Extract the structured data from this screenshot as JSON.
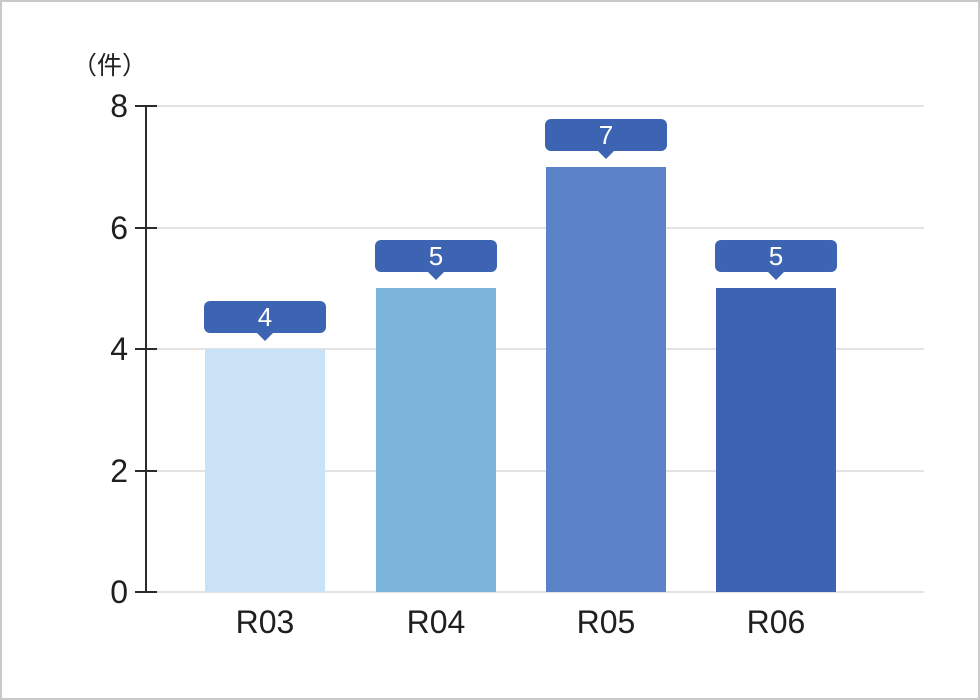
{
  "chart_data": {
    "type": "bar",
    "title": "",
    "unit_label": "（件）",
    "categories": [
      "R03",
      "R04",
      "R05",
      "R06"
    ],
    "values": [
      4,
      5,
      7,
      5
    ],
    "data_labels": [
      "4",
      "5",
      "7",
      "5"
    ],
    "bar_colors": [
      "#c9e2f5",
      "#7cb5db",
      "#5b82c9",
      "#3c64b2"
    ],
    "y_ticks": [
      "0",
      "2",
      "4",
      "6",
      "8"
    ],
    "y_tick_values": [
      0,
      2,
      4,
      6,
      8
    ],
    "ylim": [
      0,
      8
    ],
    "xlabel": "",
    "ylabel": "（件）",
    "grid": true,
    "legend": "none",
    "callout_color": "#3c64b2",
    "callout_text_color": "#ffffff",
    "axis_color": "#2b2b2b",
    "gridline_color": "#e3e3e3",
    "text_color": "#1f1f1f"
  }
}
